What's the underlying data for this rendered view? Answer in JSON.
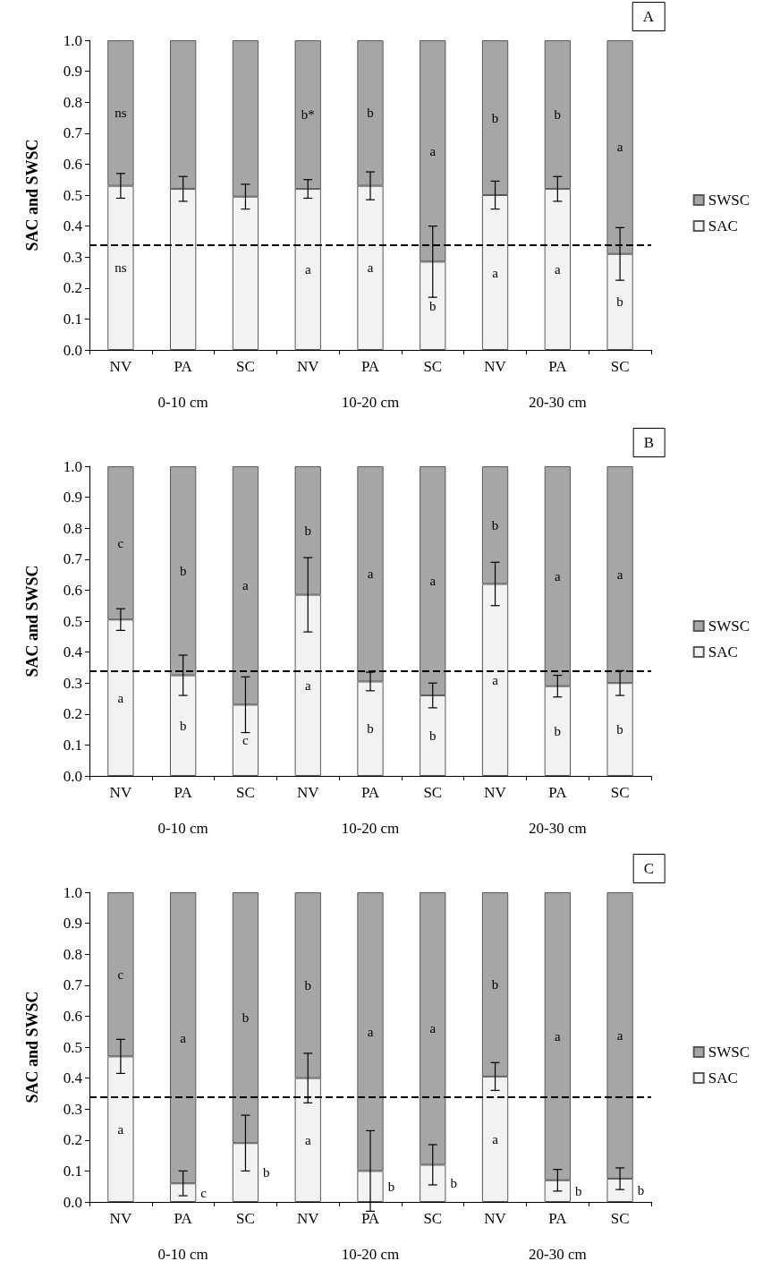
{
  "chart_data": [
    {
      "type": "bar",
      "title": "A",
      "ylabel": "SAC and SWSC",
      "stacked": true,
      "legend": "right",
      "grid": false,
      "categories": [
        "NV",
        "PA",
        "SC",
        "NV",
        "PA",
        "SC",
        "NV",
        "PA",
        "SC"
      ],
      "annotations": [
        "0-10 cm",
        "10-20 cm",
        "20-30 cm"
      ],
      "ylim": [
        0,
        1
      ],
      "yticks": [
        {
          "value": 0,
          "label": "0.0"
        },
        {
          "value": 0.1,
          "label": "0.1"
        },
        {
          "value": 0.2,
          "label": "0.2"
        },
        {
          "value": 0.3,
          "label": "0.3"
        },
        {
          "value": 0.4,
          "label": "0.4"
        },
        {
          "value": 0.5,
          "label": "0.5"
        },
        {
          "value": 0.6,
          "label": "0.6"
        },
        {
          "value": 0.7,
          "label": "0.7"
        },
        {
          "value": 0.8,
          "label": "0.8"
        },
        {
          "value": 0.9,
          "label": "0.9"
        },
        {
          "value": 1,
          "label": "1.0"
        }
      ],
      "ref_lines": [
        {
          "axis": "y",
          "value": 0.34,
          "color": "#000000",
          "line_style": "dashed"
        }
      ],
      "series": [
        {
          "name": "SAC",
          "color": "#f2f2f2",
          "values": [
            0.53,
            0.52,
            0.495,
            0.52,
            0.53,
            0.285,
            0.5,
            0.52,
            0.31
          ],
          "errors": [
            0.04,
            0.04,
            0.04,
            0.03,
            0.045,
            0.115,
            0.045,
            0.04,
            0.085
          ],
          "value_labels": [
            "ns",
            null,
            null,
            "a",
            "a",
            "b",
            "a",
            "a",
            "b"
          ]
        },
        {
          "name": "SWSC",
          "color": "#a6a6a6",
          "values": [
            0.47,
            0.48,
            0.505,
            0.48,
            0.47,
            0.715,
            0.5,
            0.48,
            0.69
          ],
          "value_labels": [
            "ns",
            null,
            null,
            "b*",
            "b",
            "a",
            "b",
            "b",
            "a"
          ]
        }
      ]
    },
    {
      "type": "bar",
      "title": "B",
      "ylabel": "SAC and SWSC",
      "stacked": true,
      "legend": "right",
      "grid": false,
      "categories": [
        "NV",
        "PA",
        "SC",
        "NV",
        "PA",
        "SC",
        "NV",
        "PA",
        "SC"
      ],
      "annotations": [
        "0-10 cm",
        "10-20 cm",
        "20-30 cm"
      ],
      "ylim": [
        0,
        1
      ],
      "yticks": [
        {
          "value": 0,
          "label": "0.0"
        },
        {
          "value": 0.1,
          "label": "0.1"
        },
        {
          "value": 0.2,
          "label": "0.2"
        },
        {
          "value": 0.3,
          "label": "0.3"
        },
        {
          "value": 0.4,
          "label": "0.4"
        },
        {
          "value": 0.5,
          "label": "0.5"
        },
        {
          "value": 0.6,
          "label": "0.6"
        },
        {
          "value": 0.7,
          "label": "0.7"
        },
        {
          "value": 0.8,
          "label": "0.8"
        },
        {
          "value": 0.9,
          "label": "0.9"
        },
        {
          "value": 1,
          "label": "1.0"
        }
      ],
      "ref_lines": [
        {
          "axis": "y",
          "value": 0.34,
          "color": "#000000",
          "line_style": "dashed"
        }
      ],
      "series": [
        {
          "name": "SAC",
          "color": "#f2f2f2",
          "values": [
            0.505,
            0.325,
            0.23,
            0.585,
            0.305,
            0.26,
            0.62,
            0.29,
            0.3
          ],
          "errors": [
            0.035,
            0.065,
            0.09,
            0.12,
            0.03,
            0.04,
            0.07,
            0.035,
            0.04
          ],
          "value_labels": [
            "a",
            "b",
            "c",
            "a",
            "b",
            "b",
            "a",
            "b",
            "b"
          ]
        },
        {
          "name": "SWSC",
          "color": "#a6a6a6",
          "values": [
            0.495,
            0.675,
            0.77,
            0.415,
            0.695,
            0.74,
            0.38,
            0.71,
            0.7
          ],
          "value_labels": [
            "c",
            "b",
            "a",
            "b",
            "a",
            "a",
            "b",
            "a",
            "a"
          ]
        }
      ]
    },
    {
      "type": "bar",
      "title": "C",
      "ylabel": "SAC and SWSC",
      "stacked": true,
      "legend": "right",
      "grid": false,
      "categories": [
        "NV",
        "PA",
        "SC",
        "NV",
        "PA",
        "SC",
        "NV",
        "PA",
        "SC"
      ],
      "annotations": [
        "0-10 cm",
        "10-20 cm",
        "20-30 cm"
      ],
      "ylim": [
        0,
        1
      ],
      "yticks": [
        {
          "value": 0,
          "label": "0.0"
        },
        {
          "value": 0.1,
          "label": "0.1"
        },
        {
          "value": 0.2,
          "label": "0.2"
        },
        {
          "value": 0.3,
          "label": "0.3"
        },
        {
          "value": 0.4,
          "label": "0.4"
        },
        {
          "value": 0.5,
          "label": "0.5"
        },
        {
          "value": 0.6,
          "label": "0.6"
        },
        {
          "value": 0.7,
          "label": "0.7"
        },
        {
          "value": 0.8,
          "label": "0.8"
        },
        {
          "value": 0.9,
          "label": "0.9"
        },
        {
          "value": 1,
          "label": "1.0"
        }
      ],
      "ref_lines": [
        {
          "axis": "y",
          "value": 0.34,
          "color": "#000000",
          "line_style": "dashed"
        }
      ],
      "series": [
        {
          "name": "SAC",
          "color": "#f2f2f2",
          "values": [
            0.47,
            0.06,
            0.19,
            0.4,
            0.1,
            0.12,
            0.405,
            0.07,
            0.075
          ],
          "errors": [
            0.055,
            0.04,
            0.09,
            0.08,
            0.13,
            0.065,
            0.045,
            0.035,
            0.035
          ],
          "value_labels": [
            "a",
            "c",
            "b",
            "a",
            "b",
            "b",
            "a",
            "b",
            "b"
          ]
        },
        {
          "name": "SWSC",
          "color": "#a6a6a6",
          "values": [
            0.53,
            0.94,
            0.81,
            0.6,
            0.9,
            0.88,
            0.595,
            0.93,
            0.925
          ],
          "value_labels": [
            "c",
            "a",
            "b",
            "b",
            "a",
            "a",
            "b",
            "a",
            "a"
          ]
        }
      ]
    }
  ]
}
